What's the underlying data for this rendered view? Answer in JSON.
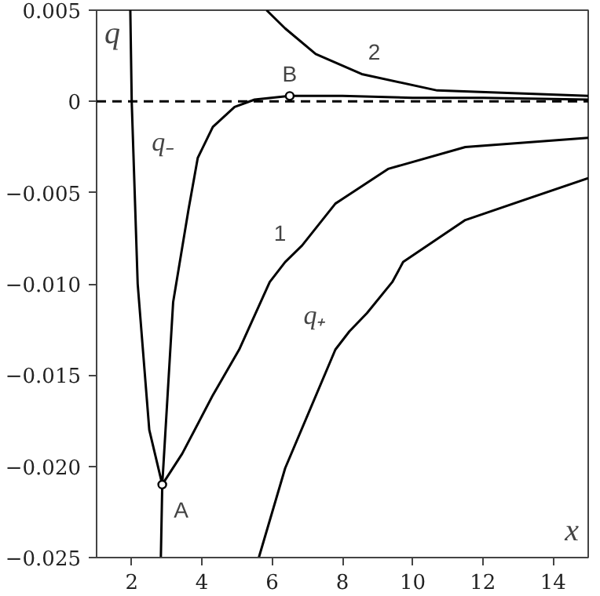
{
  "chart_data": {
    "type": "line",
    "xlabel": "x",
    "ylabel": "q",
    "xlim": [
      1,
      15
    ],
    "ylim": [
      -0.025,
      0.005
    ],
    "xticks": [
      2,
      4,
      6,
      8,
      10,
      12,
      14
    ],
    "yticks": [
      {
        "value": 0.005,
        "label": "0.005"
      },
      0,
      {
        "value": -0.005,
        "label": "−0.005"
      },
      {
        "value": -0.01,
        "label": "−0.010"
      },
      {
        "value": -0.015,
        "label": "−0.015"
      },
      {
        "value": -0.02,
        "label": "−0.020"
      },
      {
        "value": -0.025,
        "label": "−0.025"
      }
    ],
    "grid": false,
    "line_style": "solid",
    "marker": "none",
    "series": [
      {
        "color": "#000000",
        "x": [
          1.96,
          2.0,
          2.17,
          2.5,
          2.87,
          3.18,
          3.62,
          3.88,
          4.31,
          4.93,
          5.5,
          6.5,
          8,
          10,
          12,
          15
        ],
        "values": [
          0.005,
          0,
          -0.01,
          -0.018,
          -0.021,
          -0.011,
          -0.0059,
          -0.0031,
          -0.0014,
          -0.0003,
          0.0001,
          0.0003,
          0.0003,
          0.0002,
          0.0002,
          0.0001
        ]
      },
      {
        "color": "#000000",
        "x": [
          2.83,
          2.87,
          3.44,
          4.31,
          5.06,
          5.93,
          6.37,
          6.85,
          7.8,
          9.3,
          11.5,
          15
        ],
        "values": [
          -0.025,
          -0.021,
          -0.0193,
          -0.0161,
          -0.0136,
          -0.0099,
          -0.0088,
          -0.0079,
          -0.0056,
          -0.0037,
          -0.0025,
          -0.002
        ]
      },
      {
        "color": "#000000",
        "x": [
          5.62,
          6.37,
          7.8,
          8.2,
          8.7,
          9.42,
          9.73,
          11.5,
          15
        ],
        "values": [
          -0.025,
          -0.0201,
          -0.0136,
          -0.0126,
          -0.0116,
          -0.0099,
          -0.0088,
          -0.0065,
          -0.0042
        ]
      },
      {
        "color": "#000000",
        "x": [
          5.84,
          6.37,
          7.24,
          8.55,
          10.7,
          15
        ],
        "values": [
          0.005,
          0.004,
          0.0026,
          0.0015,
          0.0006,
          0.0003
        ]
      },
      {
        "type": "scatter",
        "marker": "circle",
        "color": "#000000",
        "x": [
          2.87,
          6.5
        ],
        "values": [
          -0.021,
          0.0003
        ]
      }
    ],
    "ref_lines": [
      {
        "axis": "y",
        "value": 0,
        "line_style": "dashed",
        "color": "#000000"
      }
    ],
    "annotations": [
      {
        "text": "q₋",
        "x": 3.88,
        "y": -0.0031
      },
      {
        "text": "1",
        "x": 6.85,
        "y": -0.0079
      },
      {
        "text": "q₊",
        "x": 8.2,
        "y": -0.0126
      },
      {
        "text": "2",
        "x": 8.55,
        "y": 0.0015
      },
      {
        "text": "A",
        "x": 2.87,
        "y": -0.021
      },
      {
        "text": "B",
        "x": 6.5,
        "y": 0.0003
      }
    ]
  }
}
